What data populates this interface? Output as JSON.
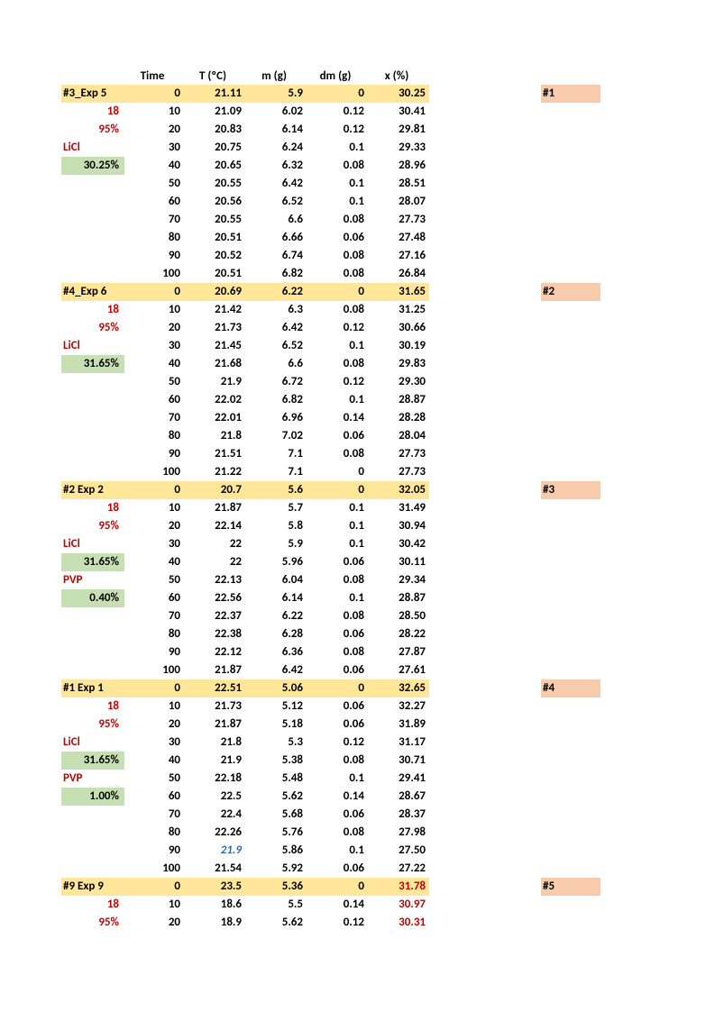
{
  "headers": {
    "time": "Time",
    "t": "T (ºC)",
    "m": "m (g)",
    "dm": "dm (g)",
    "x": "x (%)"
  },
  "label_colors": {
    "exp_title": "#000000",
    "num18": "#c40000",
    "pct95": "#c40000",
    "licl": "#c40000",
    "pvp": "#c40000",
    "green_bg": "#c6e0b4",
    "yellow_bg": "#ffe699",
    "pink_bg": "#f8cbad"
  },
  "blocks": [
    {
      "tag": "#1",
      "tag_bg": "pink",
      "labels": [
        {
          "text": "#3_Exp 5",
          "bold": true,
          "hl": "yellow"
        },
        {
          "text": "18",
          "bold": true,
          "red": true,
          "align": "right"
        },
        {
          "text": "95%",
          "bold": true,
          "red": true,
          "align": "right"
        },
        {
          "text": "LiCl",
          "bold": true,
          "red": true
        },
        {
          "text": "30.25%",
          "bold": true,
          "hl": "green",
          "align": "right"
        },
        {
          "text": ""
        },
        {
          "text": ""
        },
        {
          "text": ""
        },
        {
          "text": ""
        },
        {
          "text": ""
        },
        {
          "text": ""
        }
      ],
      "rows": [
        {
          "time": "0",
          "t": "21.11",
          "m": "5.9",
          "dm": "0",
          "x": "30.25",
          "hl": "yellow"
        },
        {
          "time": "10",
          "t": "21.09",
          "m": "6.02",
          "dm": "0.12",
          "x": "30.41"
        },
        {
          "time": "20",
          "t": "20.83",
          "m": "6.14",
          "dm": "0.12",
          "x": "29.81"
        },
        {
          "time": "30",
          "t": "20.75",
          "m": "6.24",
          "dm": "0.1",
          "x": "29.33"
        },
        {
          "time": "40",
          "t": "20.65",
          "m": "6.32",
          "dm": "0.08",
          "x": "28.96"
        },
        {
          "time": "50",
          "t": "20.55",
          "m": "6.42",
          "dm": "0.1",
          "x": "28.51"
        },
        {
          "time": "60",
          "t": "20.56",
          "m": "6.52",
          "dm": "0.1",
          "x": "28.07"
        },
        {
          "time": "70",
          "t": "20.55",
          "m": "6.6",
          "dm": "0.08",
          "x": "27.73"
        },
        {
          "time": "80",
          "t": "20.51",
          "m": "6.66",
          "dm": "0.06",
          "x": "27.48"
        },
        {
          "time": "90",
          "t": "20.52",
          "m": "6.74",
          "dm": "0.08",
          "x": "27.16"
        },
        {
          "time": "100",
          "t": "20.51",
          "m": "6.82",
          "dm": "0.08",
          "x": "26.84"
        }
      ]
    },
    {
      "tag": "#2",
      "tag_bg": "pink",
      "labels": [
        {
          "text": "#4_Exp 6",
          "bold": true,
          "hl": "yellow"
        },
        {
          "text": "18",
          "bold": true,
          "red": true,
          "align": "right"
        },
        {
          "text": "95%",
          "bold": true,
          "red": true,
          "align": "right"
        },
        {
          "text": "LiCl",
          "bold": true,
          "red": true
        },
        {
          "text": "31.65%",
          "bold": true,
          "hl": "green",
          "align": "right"
        },
        {
          "text": ""
        },
        {
          "text": ""
        },
        {
          "text": ""
        },
        {
          "text": ""
        },
        {
          "text": ""
        },
        {
          "text": ""
        }
      ],
      "rows": [
        {
          "time": "0",
          "t": "20.69",
          "m": "6.22",
          "dm": "0",
          "x": "31.65",
          "hl": "yellow"
        },
        {
          "time": "10",
          "t": "21.42",
          "m": "6.3",
          "dm": "0.08",
          "x": "31.25"
        },
        {
          "time": "20",
          "t": "21.73",
          "m": "6.42",
          "dm": "0.12",
          "x": "30.66"
        },
        {
          "time": "30",
          "t": "21.45",
          "m": "6.52",
          "dm": "0.1",
          "x": "30.19"
        },
        {
          "time": "40",
          "t": "21.68",
          "m": "6.6",
          "dm": "0.08",
          "x": "29.83"
        },
        {
          "time": "50",
          "t": "21.9",
          "m": "6.72",
          "dm": "0.12",
          "x": "29.30"
        },
        {
          "time": "60",
          "t": "22.02",
          "m": "6.82",
          "dm": "0.1",
          "x": "28.87"
        },
        {
          "time": "70",
          "t": "22.01",
          "m": "6.96",
          "dm": "0.14",
          "x": "28.28"
        },
        {
          "time": "80",
          "t": "21.8",
          "m": "7.02",
          "dm": "0.06",
          "x": "28.04"
        },
        {
          "time": "90",
          "t": "21.51",
          "m": "7.1",
          "dm": "0.08",
          "x": "27.73"
        },
        {
          "time": "100",
          "t": "21.22",
          "m": "7.1",
          "dm": "0",
          "x": "27.73"
        }
      ]
    },
    {
      "tag": "#3",
      "tag_bg": "pink",
      "labels": [
        {
          "text": "#2 Exp 2",
          "bold": true,
          "hl": "yellow"
        },
        {
          "text": "18",
          "bold": true,
          "red": true,
          "align": "right"
        },
        {
          "text": "95%",
          "bold": true,
          "red": true,
          "align": "right"
        },
        {
          "text": "LiCl",
          "bold": true,
          "red": true
        },
        {
          "text": "31.65%",
          "bold": true,
          "hl": "green",
          "align": "right"
        },
        {
          "text": "PVP",
          "bold": true,
          "red": true
        },
        {
          "text": "0.40%",
          "bold": true,
          "hl": "green",
          "align": "right"
        },
        {
          "text": ""
        },
        {
          "text": ""
        },
        {
          "text": ""
        },
        {
          "text": ""
        }
      ],
      "rows": [
        {
          "time": "0",
          "t": "20.7",
          "m": "5.6",
          "dm": "0",
          "x": "32.05",
          "hl": "yellow"
        },
        {
          "time": "10",
          "t": "21.87",
          "m": "5.7",
          "dm": "0.1",
          "x": "31.49"
        },
        {
          "time": "20",
          "t": "22.14",
          "m": "5.8",
          "dm": "0.1",
          "x": "30.94"
        },
        {
          "time": "30",
          "t": "22",
          "m": "5.9",
          "dm": "0.1",
          "x": "30.42"
        },
        {
          "time": "40",
          "t": "22",
          "m": "5.96",
          "dm": "0.06",
          "x": "30.11"
        },
        {
          "time": "50",
          "t": "22.13",
          "m": "6.04",
          "dm": "0.08",
          "x": "29.34"
        },
        {
          "time": "60",
          "t": "22.56",
          "m": "6.14",
          "dm": "0.1",
          "x": "28.87"
        },
        {
          "time": "70",
          "t": "22.37",
          "m": "6.22",
          "dm": "0.08",
          "x": "28.50"
        },
        {
          "time": "80",
          "t": "22.38",
          "m": "6.28",
          "dm": "0.06",
          "x": "28.22"
        },
        {
          "time": "90",
          "t": "22.12",
          "m": "6.36",
          "dm": "0.08",
          "x": "27.87"
        },
        {
          "time": "100",
          "t": "21.87",
          "m": "6.42",
          "dm": "0.06",
          "x": "27.61"
        }
      ]
    },
    {
      "tag": "#4",
      "tag_bg": "pink",
      "labels": [
        {
          "text": "#1 Exp 1",
          "bold": true,
          "hl": "yellow"
        },
        {
          "text": "18",
          "bold": true,
          "red": true,
          "align": "right"
        },
        {
          "text": "95%",
          "bold": true,
          "red": true,
          "align": "right"
        },
        {
          "text": "LiCl",
          "bold": true,
          "red": true
        },
        {
          "text": "31.65%",
          "bold": true,
          "hl": "green",
          "align": "right"
        },
        {
          "text": "PVP",
          "bold": true,
          "red": true
        },
        {
          "text": "1.00%",
          "bold": true,
          "hl": "green",
          "align": "right"
        },
        {
          "text": ""
        },
        {
          "text": ""
        },
        {
          "text": ""
        },
        {
          "text": ""
        }
      ],
      "rows": [
        {
          "time": "0",
          "t": "22.51",
          "m": "5.06",
          "dm": "0",
          "x": "32.65",
          "hl": "yellow"
        },
        {
          "time": "10",
          "t": "21.73",
          "m": "5.12",
          "dm": "0.06",
          "x": "32.27"
        },
        {
          "time": "20",
          "t": "21.87",
          "m": "5.18",
          "dm": "0.06",
          "x": "31.89"
        },
        {
          "time": "30",
          "t": "21.8",
          "m": "5.3",
          "dm": "0.12",
          "x": "31.17"
        },
        {
          "time": "40",
          "t": "21.9",
          "m": "5.38",
          "dm": "0.08",
          "x": "30.71"
        },
        {
          "time": "50",
          "t": "22.18",
          "m": "5.48",
          "dm": "0.1",
          "x": "29.41"
        },
        {
          "time": "60",
          "t": "22.5",
          "m": "5.62",
          "dm": "0.14",
          "x": "28.67"
        },
        {
          "time": "70",
          "t": "22.4",
          "m": "5.68",
          "dm": "0.06",
          "x": "28.37"
        },
        {
          "time": "80",
          "t": "22.26",
          "m": "5.76",
          "dm": "0.08",
          "x": "27.98"
        },
        {
          "time": "90",
          "t": "21.9",
          "m": "5.86",
          "dm": "0.1",
          "x": "27.50",
          "t_style": "blueit"
        },
        {
          "time": "100",
          "t": "21.54",
          "m": "5.92",
          "dm": "0.06",
          "x": "27.22"
        }
      ]
    },
    {
      "tag": "#5",
      "tag_bg": "pink",
      "labels": [
        {
          "text": "#9 Exp 9",
          "bold": true,
          "hl": "yellow"
        },
        {
          "text": "18",
          "bold": true,
          "red": true,
          "align": "right"
        },
        {
          "text": "95%",
          "bold": true,
          "red": true,
          "align": "right"
        }
      ],
      "rows": [
        {
          "time": "0",
          "t": "23.5",
          "m": "5.36",
          "dm": "0",
          "x": "31.78",
          "hl": "yellow",
          "x_red": true
        },
        {
          "time": "10",
          "t": "18.6",
          "m": "5.5",
          "dm": "0.14",
          "x": "30.97",
          "x_red": true
        },
        {
          "time": "20",
          "t": "18.9",
          "m": "5.62",
          "dm": "0.12",
          "x": "30.31",
          "x_red": true
        }
      ]
    }
  ]
}
